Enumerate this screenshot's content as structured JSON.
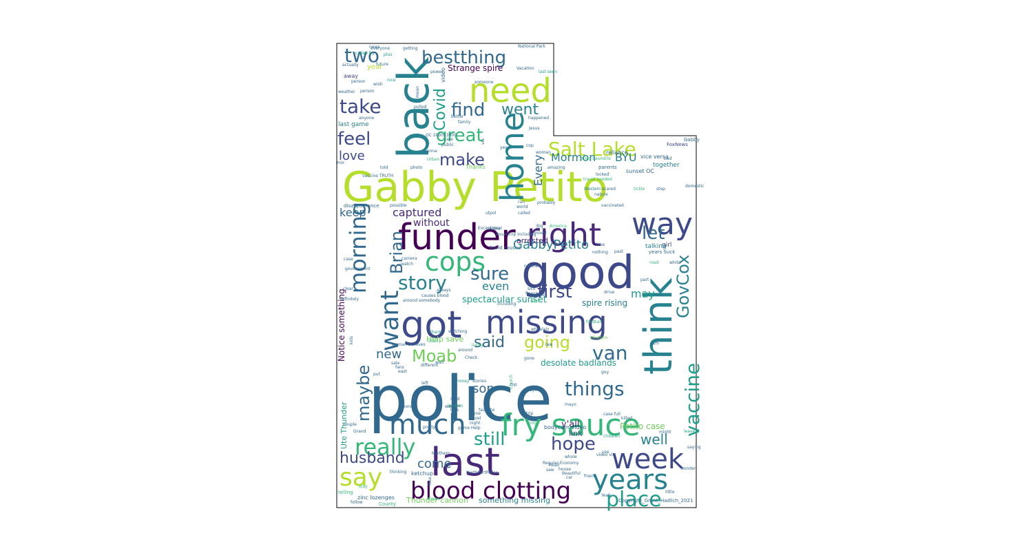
{
  "copyright": "Copyright_Grant_Hadlich_2021",
  "palette": [
    "#440154",
    "#482878",
    "#3e4989",
    "#31688e",
    "#26828e",
    "#1f9e89",
    "#35b779",
    "#6ece58",
    "#b5de2b"
  ],
  "words": [
    {
      "text": "police",
      "c": 3
    },
    {
      "text": "Gabby Petito",
      "c": 8
    },
    {
      "text": "good",
      "c": 2
    },
    {
      "text": "funder",
      "c": 0
    },
    {
      "text": "got",
      "c": 2
    },
    {
      "text": "missing",
      "c": 2
    },
    {
      "text": "back",
      "c": 4
    },
    {
      "text": "think",
      "c": 4
    },
    {
      "text": "last",
      "c": 1
    },
    {
      "text": "need",
      "c": 8
    },
    {
      "text": "home",
      "c": 4
    },
    {
      "text": "right",
      "c": 1
    },
    {
      "text": "way",
      "c": 2
    },
    {
      "text": "fry sauce",
      "c": 6
    },
    {
      "text": "cops",
      "c": 6
    },
    {
      "text": "week",
      "c": 2
    },
    {
      "text": "years",
      "c": 4
    },
    {
      "text": "much",
      "c": 3
    },
    {
      "text": "say",
      "c": 8
    },
    {
      "text": "blood clotting",
      "c": 0
    },
    {
      "text": "morning",
      "c": 3
    },
    {
      "text": "want",
      "c": 3
    },
    {
      "text": "Brian",
      "c": 3
    },
    {
      "text": "place",
      "c": 5
    },
    {
      "text": "really",
      "c": 6
    },
    {
      "text": "bestthing",
      "c": 3
    },
    {
      "text": "two",
      "c": 3
    },
    {
      "text": "take",
      "c": 2
    },
    {
      "text": "find",
      "c": 3
    },
    {
      "text": "went",
      "c": 4
    },
    {
      "text": "Covid",
      "c": 5
    },
    {
      "text": "great",
      "c": 6
    },
    {
      "text": "feel",
      "c": 2
    },
    {
      "text": "make",
      "c": 2
    },
    {
      "text": "love",
      "c": 2
    },
    {
      "text": "Salt Lake",
      "c": 8
    },
    {
      "text": "Mormon",
      "c": 4
    },
    {
      "text": "BYU",
      "c": 4
    },
    {
      "text": "Every",
      "c": 3
    },
    {
      "text": "captured",
      "c": 1
    },
    {
      "text": "let",
      "c": 3
    },
    {
      "text": "keep",
      "c": 3
    },
    {
      "text": "without",
      "c": 1
    },
    {
      "text": "GabbyPetito",
      "c": 4
    },
    {
      "text": "sure",
      "c": 3
    },
    {
      "text": "story",
      "c": 4
    },
    {
      "text": "first",
      "c": 2
    },
    {
      "text": "GovCox",
      "c": 4
    },
    {
      "text": "vaccine",
      "c": 5
    },
    {
      "text": "even",
      "c": 4
    },
    {
      "text": "may",
      "c": 5
    },
    {
      "text": "said",
      "c": 3
    },
    {
      "text": "going",
      "c": 8
    },
    {
      "text": "van",
      "c": 3
    },
    {
      "text": "Moab",
      "c": 7
    },
    {
      "text": "new",
      "c": 3
    },
    {
      "text": "things",
      "c": 3
    },
    {
      "text": "maybe",
      "c": 3
    },
    {
      "text": "still",
      "c": 5
    },
    {
      "text": "hope",
      "c": 2
    },
    {
      "text": "husband",
      "c": 2
    },
    {
      "text": "come",
      "c": 3
    },
    {
      "text": "son",
      "c": 3
    },
    {
      "text": "well",
      "c": 4
    },
    {
      "text": "Strange spire",
      "c": 0
    },
    {
      "text": "spectacular sunset",
      "c": 5
    },
    {
      "text": "spire rising",
      "c": 4
    },
    {
      "text": "desolate badlands",
      "c": 5
    },
    {
      "text": "Help save",
      "c": 7
    },
    {
      "text": "Petito case",
      "c": 7
    },
    {
      "text": "Notice something",
      "c": 0
    },
    {
      "text": "something missing",
      "c": 4
    },
    {
      "text": "Thunder cannon",
      "c": 7
    },
    {
      "text": "Ute Thunder",
      "c": 5
    },
    {
      "text": "y'all",
      "c": 1
    },
    {
      "text": "link",
      "c": 2
    },
    {
      "text": "arrested",
      "c": 1
    },
    {
      "text": "last game",
      "c": 4
    },
    {
      "text": "year",
      "c": 8
    },
    {
      "text": "away",
      "c": 2
    },
    {
      "text": "together",
      "c": 4
    },
    {
      "text": "girl",
      "c": 2
    },
    {
      "text": "talking",
      "c": 4
    },
    {
      "text": "zinc lozenges",
      "c": 3
    },
    {
      "text": "video",
      "c": 3
    },
    {
      "text": "ketchup",
      "c": 3
    },
    {
      "text": "bodycam video",
      "c": 3
    },
    {
      "text": "game Help",
      "c": 3
    },
    {
      "text": "sunset OC",
      "c": 3
    },
    {
      "text": "vice versa",
      "c": 3
    },
    {
      "text": "FoxNews",
      "c": 2
    },
    {
      "text": "reliance",
      "c": 3
    },
    {
      "text": "parents",
      "c": 3
    },
    {
      "text": "domestic",
      "c": 3
    },
    {
      "text": "disappearance",
      "c": 3
    },
    {
      "text": "possible",
      "c": 3
    },
    {
      "text": "vaccinated",
      "c": 3
    },
    {
      "text": "Western",
      "c": 4
    },
    {
      "text": "nature",
      "c": 3
    },
    {
      "text": "Covid causes",
      "c": 3
    },
    {
      "text": "causes blood",
      "c": 3
    },
    {
      "text": "around somebody",
      "c": 3
    },
    {
      "text": "National Park",
      "c": 3
    },
    {
      "text": "Vacation",
      "c": 3
    },
    {
      "text": "Regular Economy",
      "c": 3
    },
    {
      "text": "NorthPortPolice",
      "c": 3
    },
    {
      "text": "Beautiful",
      "c": 3
    },
    {
      "text": "Thank",
      "c": 5
    },
    {
      "text": "Gabby",
      "c": 3
    },
    {
      "text": "Jesus",
      "c": 3
    },
    {
      "text": "case full",
      "c": 3
    },
    {
      "text": "killed",
      "c": 3
    },
    {
      "text": "leave",
      "c": 5
    },
    {
      "text": "years Suck",
      "c": 3
    },
    {
      "text": "children",
      "c": 5
    },
    {
      "text": "video via",
      "c": 3
    },
    {
      "text": "wonder",
      "c": 3
    },
    {
      "text": "actually",
      "c": 3
    },
    {
      "text": "everyone",
      "c": 3
    },
    {
      "text": "getting",
      "c": 3
    },
    {
      "text": "weather",
      "c": 3
    },
    {
      "text": "person",
      "c": 3
    },
    {
      "text": "pulled",
      "c": 3
    },
    {
      "text": "family",
      "c": 3
    },
    {
      "text": "happened",
      "c": 3
    },
    {
      "text": "better",
      "c": 3
    },
    {
      "text": "Exceptional",
      "c": 3
    },
    {
      "text": "Roundtrip including",
      "c": 3
    },
    {
      "text": "including",
      "c": 3
    },
    {
      "text": "always",
      "c": 3
    },
    {
      "text": "Check",
      "c": 3
    },
    {
      "text": "stories",
      "c": 3
    },
    {
      "text": "favorite",
      "c": 3
    },
    {
      "text": "pretty",
      "c": 3
    },
    {
      "text": "phone",
      "c": 3
    },
    {
      "text": "Grand",
      "c": 3
    },
    {
      "text": "couple",
      "c": 3
    },
    {
      "text": "Northern",
      "c": 3
    },
    {
      "text": "thinking",
      "c": 3
    },
    {
      "text": "follow",
      "c": 3
    },
    {
      "text": "County",
      "c": 6
    },
    {
      "text": "telling",
      "c": 6
    },
    {
      "text": "stay",
      "c": 6
    },
    {
      "text": "anyone",
      "c": 3
    },
    {
      "text": "mix",
      "c": 3
    },
    {
      "text": "vaccine TRUTH",
      "c": 3
    },
    {
      "text": "told",
      "c": 3
    },
    {
      "text": "photo",
      "c": 3
    },
    {
      "text": "Urban",
      "c": 6
    },
    {
      "text": "Thanks",
      "c": 7
    },
    {
      "text": "yes",
      "c": 3
    },
    {
      "text": "cop",
      "c": 3
    },
    {
      "text": "amazing",
      "c": 3
    },
    {
      "text": "locked",
      "c": 3
    },
    {
      "text": "scared",
      "c": 3
    },
    {
      "text": "tickle",
      "c": 6
    },
    {
      "text": "stop",
      "c": 3
    },
    {
      "text": "bad",
      "c": 3
    },
    {
      "text": "top",
      "c": 3
    },
    {
      "text": "mayo",
      "c": 3
    },
    {
      "text": "guy",
      "c": 3
    },
    {
      "text": "LDS",
      "c": 3
    },
    {
      "text": "white",
      "c": 3
    },
    {
      "text": "road",
      "c": 6
    },
    {
      "text": "lose",
      "c": 3
    },
    {
      "text": "past",
      "c": 3
    },
    {
      "text": "nothing",
      "c": 3
    },
    {
      "text": "victim",
      "c": 3
    },
    {
      "text": "utpol",
      "c": 3
    },
    {
      "text": "called",
      "c": 3
    },
    {
      "text": "mixed",
      "c": 3
    },
    {
      "text": "world",
      "c": 3
    },
    {
      "text": "run",
      "c": 3
    },
    {
      "text": "probably",
      "c": 3
    },
    {
      "text": "future",
      "c": 3
    },
    {
      "text": "called fry",
      "c": 5
    },
    {
      "text": "person",
      "c": 3
    },
    {
      "text": "mean",
      "c": 3
    },
    {
      "text": "someone",
      "c": 3
    },
    {
      "text": "power",
      "c": 3
    },
    {
      "text": "wish",
      "c": 3
    },
    {
      "text": "nice",
      "c": 5
    },
    {
      "text": "plus",
      "c": 5
    },
    {
      "text": "last seen",
      "c": 5
    },
    {
      "text": "news",
      "c": 3
    },
    {
      "text": "via",
      "c": 3
    },
    {
      "text": "OC 2000x3000",
      "c": 3
    },
    {
      "text": "gonna",
      "c": 3
    },
    {
      "text": "watch",
      "c": 3
    },
    {
      "text": "camera",
      "c": 3
    },
    {
      "text": "case",
      "c": 3
    },
    {
      "text": "government",
      "c": 3
    },
    {
      "text": "definitely",
      "c": 3
    },
    {
      "text": "clear",
      "c": 3
    },
    {
      "text": "kids",
      "c": 3
    },
    {
      "text": "woman believes",
      "c": 3
    },
    {
      "text": "sale",
      "c": 3
    },
    {
      "text": "east",
      "c": 3
    },
    {
      "text": "start",
      "c": 6
    },
    {
      "text": "honey",
      "c": 5
    },
    {
      "text": "watching",
      "c": 3
    },
    {
      "text": "living",
      "c": 6
    },
    {
      "text": "around",
      "c": 3
    },
    {
      "text": "wait",
      "c": 3
    },
    {
      "text": "different",
      "c": 3
    },
    {
      "text": "leaders",
      "c": 6
    },
    {
      "text": "left",
      "c": 3
    },
    {
      "text": "mad",
      "c": 3
    },
    {
      "text": "name",
      "c": 3
    },
    {
      "text": "look",
      "c": 3
    },
    {
      "text": "travel",
      "c": 3
    },
    {
      "text": "done",
      "c": 3
    },
    {
      "text": "wants",
      "c": 3
    },
    {
      "text": "night",
      "c": 3
    },
    {
      "text": "trip",
      "c": 3
    },
    {
      "text": "long",
      "c": 6
    },
    {
      "text": "whole",
      "c": 3
    },
    {
      "text": "Read",
      "c": 3
    },
    {
      "text": "friend",
      "c": 3
    },
    {
      "text": "house",
      "c": 3
    },
    {
      "text": "saw",
      "c": 3
    },
    {
      "text": "car",
      "c": 3
    },
    {
      "text": "Yeah",
      "c": 3
    },
    {
      "text": "little",
      "c": 3
    },
    {
      "text": "use",
      "c": 3
    },
    {
      "text": "might",
      "c": 3
    },
    {
      "text": "saying",
      "c": 3
    },
    {
      "text": "football",
      "c": 6
    },
    {
      "text": "situation",
      "c": 7
    },
    {
      "text": "wheelalz",
      "c": 3
    },
    {
      "text": "gone",
      "c": 3
    },
    {
      "text": "law",
      "c": 3
    },
    {
      "text": "another",
      "c": 3
    },
    {
      "text": "work",
      "c": 6
    },
    {
      "text": "drive",
      "c": 3
    },
    {
      "text": "part",
      "c": 3
    },
    {
      "text": "natural",
      "c": 3
    },
    {
      "text": "travel needed",
      "c": 6
    },
    {
      "text": "woman",
      "c": 3
    },
    {
      "text": "Brian Laundrie",
      "c": 6
    },
    {
      "text": "Big",
      "c": 3
    },
    {
      "text": "America",
      "c": 6
    },
    {
      "text": "care",
      "c": 3
    },
    {
      "text": "public",
      "c": 3
    },
    {
      "text": "put",
      "c": 3
    },
    {
      "text": "fans",
      "c": 3
    },
    {
      "text": "fake",
      "c": 3
    },
    {
      "text": "shows",
      "c": 6
    },
    {
      "text": "sick",
      "c": 3
    },
    {
      "text": "fiancé",
      "c": 3
    },
    {
      "text": "Church",
      "c": 6
    },
    {
      "text": "mayo",
      "c": 3
    },
    {
      "text": "rain",
      "c": 6
    },
    {
      "text": "account",
      "c": 6
    },
    {
      "text": "outside",
      "c": 3
    },
    {
      "text": "everything",
      "c": 6
    }
  ]
}
